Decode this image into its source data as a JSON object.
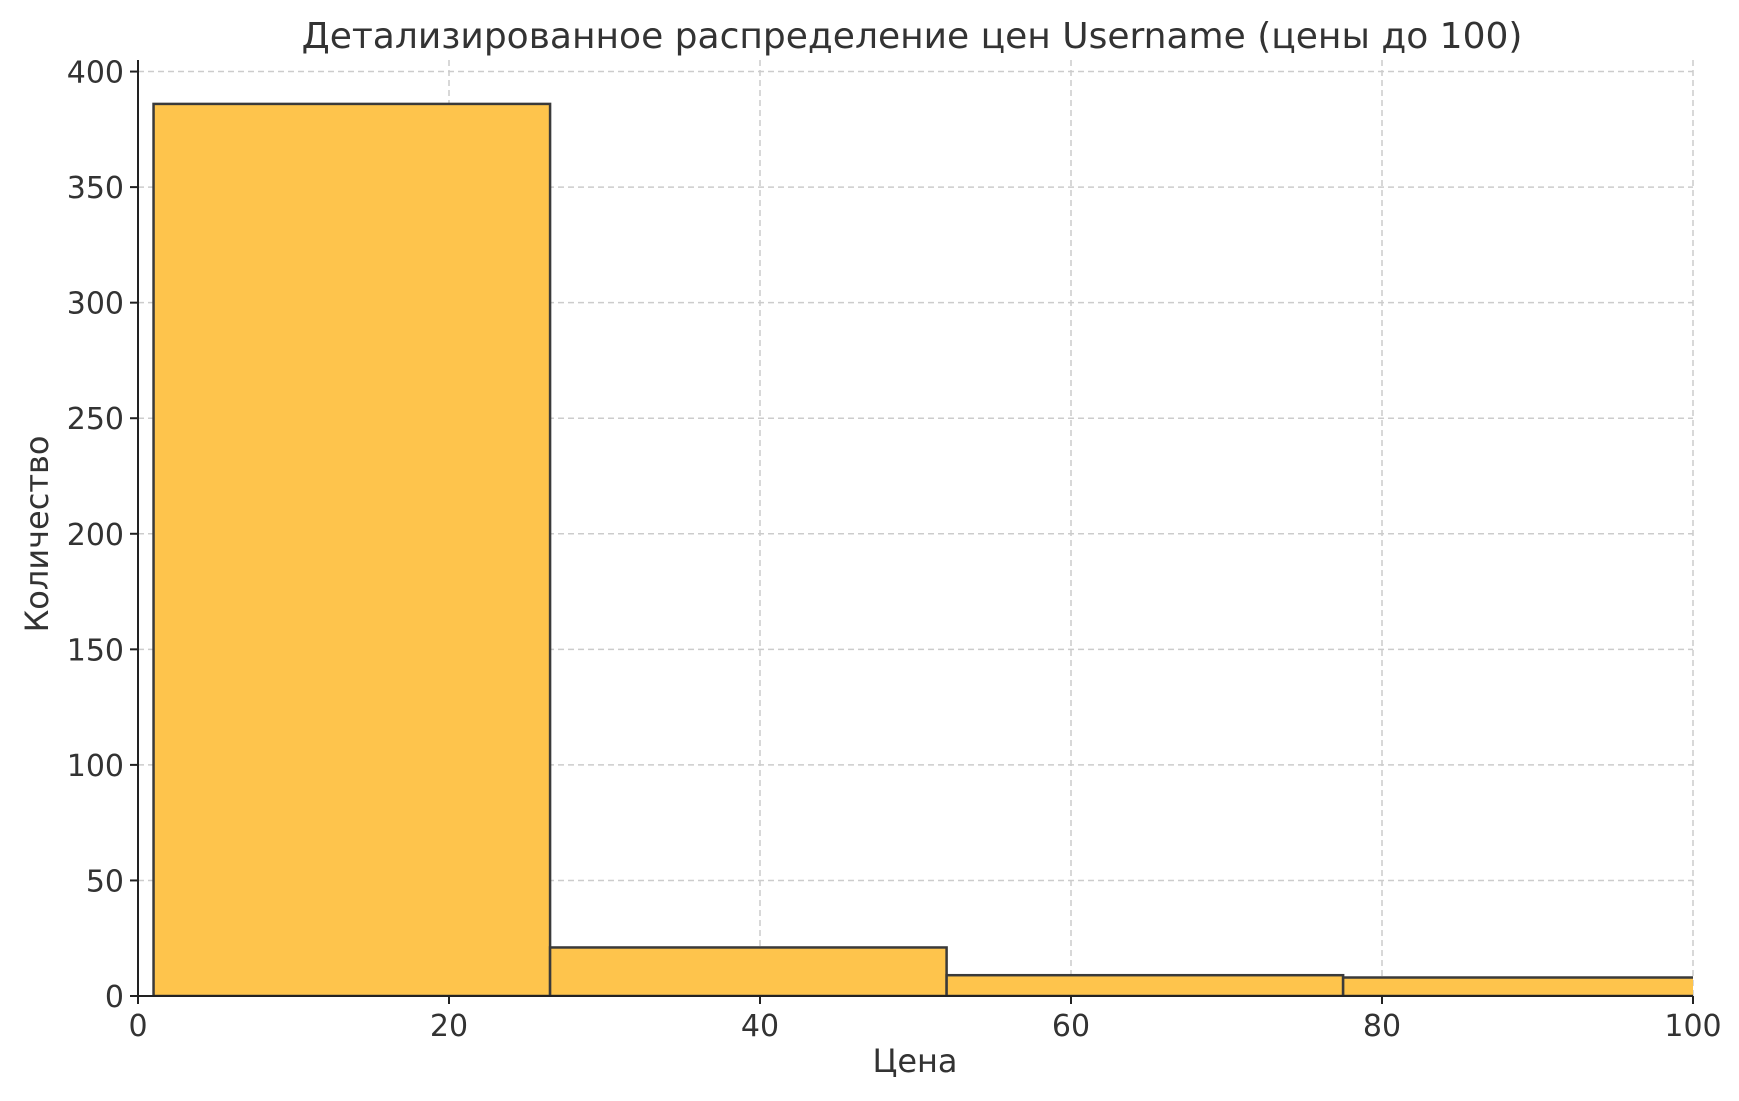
{
  "chart_data": {
    "type": "bar",
    "subtype": "histogram",
    "title": "Детализированное распределение цен Username (цены до 100)",
    "xlabel": "Цена",
    "ylabel": "Количество",
    "xlim": [
      0,
      100
    ],
    "ylim": [
      0,
      405
    ],
    "xticks": [
      0,
      20,
      40,
      60,
      80,
      100
    ],
    "xtick_labels": [
      "0",
      "20",
      "40",
      "60",
      "80",
      "100"
    ],
    "yticks": [
      0,
      50,
      100,
      150,
      200,
      250,
      300,
      350,
      400
    ],
    "ytick_labels": [
      "0",
      "50",
      "100",
      "150",
      "200",
      "250",
      "300",
      "350",
      "400"
    ],
    "bins": [
      {
        "x0": 1,
        "x1": 26.5,
        "count": 386
      },
      {
        "x0": 26.5,
        "x1": 52,
        "count": 21
      },
      {
        "x0": 52,
        "x1": 77.5,
        "count": 9
      },
      {
        "x0": 77.5,
        "x1": 103,
        "count": 8
      }
    ],
    "grid": true,
    "bar_color": "#FEC44C",
    "edge_color": "#3A3A3A",
    "grid_color": "#CCCCCC"
  }
}
